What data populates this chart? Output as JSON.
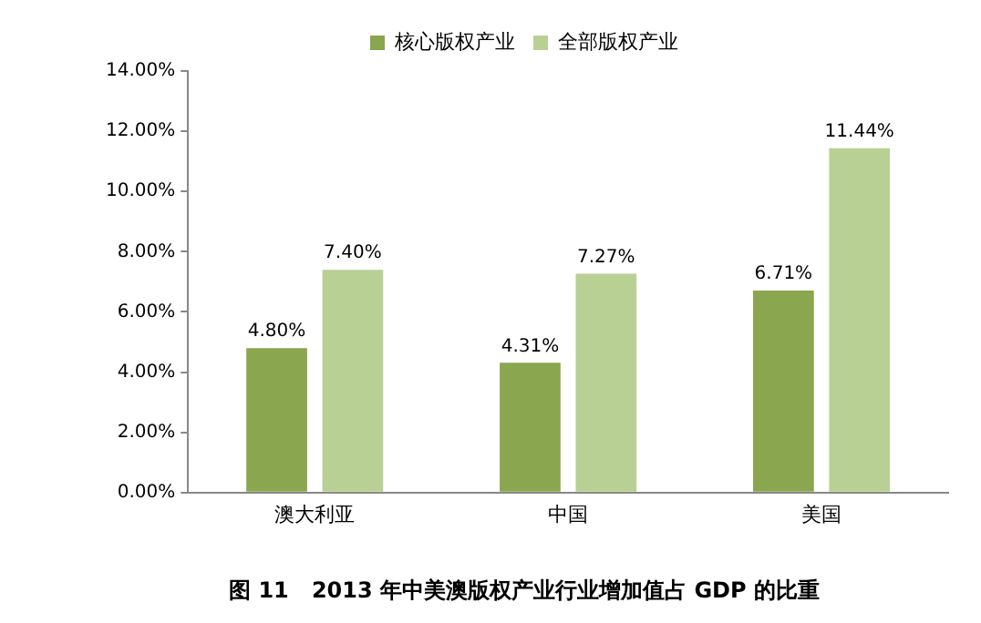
{
  "chart_data": {
    "type": "bar",
    "title": "图 11   2013 年中美澳版权产业行业增加值占 GDP 的比重",
    "categories": [
      "澳大利亚",
      "中国",
      "美国"
    ],
    "series": [
      {
        "name": "核心版权产业",
        "color": "#8aa64e",
        "values": [
          4.8,
          4.31,
          6.71
        ],
        "value_labels": [
          "4.80%",
          "4.31%",
          "6.71%"
        ]
      },
      {
        "name": "全部版权产业",
        "color": "#b9d095",
        "values": [
          7.4,
          7.27,
          11.44
        ],
        "value_labels": [
          "7.40%",
          "7.27%",
          "11.44%"
        ]
      }
    ],
    "ylim": [
      0,
      14
    ],
    "yticks": [
      {
        "value": 0,
        "label": "0.00%"
      },
      {
        "value": 2,
        "label": "2.00%"
      },
      {
        "value": 4,
        "label": "4.00%"
      },
      {
        "value": 6,
        "label": "6.00%"
      },
      {
        "value": 8,
        "label": "8.00%"
      },
      {
        "value": 10,
        "label": "10.00%"
      },
      {
        "value": 12,
        "label": "12.00%"
      },
      {
        "value": 14,
        "label": "14.00%"
      }
    ],
    "grid": false,
    "legend": "top"
  }
}
